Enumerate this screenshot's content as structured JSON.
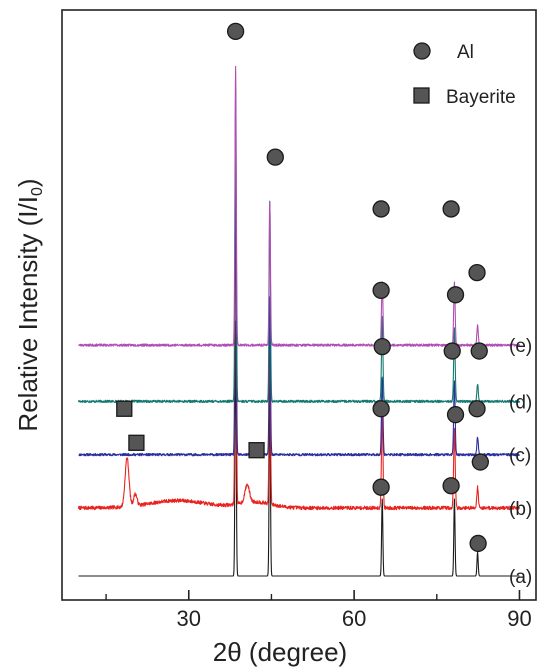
{
  "chart_data": {
    "type": "line",
    "xlabel": "2θ (degree)",
    "ylabel": "Relative Intensity (I/I",
    "ylabel_subscript": "0",
    "ylabel_suffix": ")",
    "xlim": [
      7,
      93
    ],
    "xticks": [
      30,
      60,
      90
    ],
    "xtick_labels": [
      "30",
      "60",
      "90"
    ],
    "x_minor_ticks": [
      15,
      45,
      75
    ],
    "legend": [
      {
        "label": "Al",
        "marker": "circle"
      },
      {
        "label": "Bayerite",
        "marker": "square"
      }
    ],
    "series": [
      {
        "name": "(a)",
        "color": "#1a1a1a",
        "baseline": 0.0,
        "noise": 0.0,
        "noise_seed": 3,
        "humps": [],
        "peaks": [
          {
            "x": 38.5,
            "h": 1.72,
            "w": 0.11
          },
          {
            "x": 44.7,
            "h": 1.33,
            "w": 0.11
          },
          {
            "x": 65.1,
            "h": 0.52,
            "w": 0.11
          },
          {
            "x": 78.2,
            "h": 0.52,
            "w": 0.11
          },
          {
            "x": 82.4,
            "h": 0.16,
            "w": 0.11
          }
        ]
      },
      {
        "name": "(b)",
        "color": "#e8231e",
        "baseline": 0.46,
        "noise": 0.012,
        "noise_seed": 7,
        "humps": [
          {
            "x": 28,
            "h": 0.05,
            "w": 5
          },
          {
            "x": 42,
            "h": 0.04,
            "w": 3
          }
        ],
        "peaks": [
          {
            "x": 18.8,
            "h": 0.33,
            "w": 0.35
          },
          {
            "x": 20.3,
            "h": 0.08,
            "w": 0.3
          },
          {
            "x": 40.6,
            "h": 0.12,
            "w": 0.4
          },
          {
            "x": 38.5,
            "h": 2.12,
            "w": 0.12
          },
          {
            "x": 44.7,
            "h": 1.18,
            "w": 0.12
          },
          {
            "x": 65.1,
            "h": 0.62,
            "w": 0.14
          },
          {
            "x": 78.2,
            "h": 0.53,
            "w": 0.14
          },
          {
            "x": 82.4,
            "h": 0.14,
            "w": 0.14
          }
        ]
      },
      {
        "name": "(c)",
        "color": "#2b2f9e",
        "baseline": 0.82,
        "noise": 0.008,
        "noise_seed": 11,
        "humps": [],
        "peaks": [
          {
            "x": 38.5,
            "h": 2.0,
            "w": 0.12
          },
          {
            "x": 44.7,
            "h": 1.06,
            "w": 0.12
          },
          {
            "x": 65.1,
            "h": 0.53,
            "w": 0.13
          },
          {
            "x": 78.2,
            "h": 0.5,
            "w": 0.13
          },
          {
            "x": 82.4,
            "h": 0.12,
            "w": 0.13
          }
        ]
      },
      {
        "name": "(d)",
        "color": "#137a70",
        "baseline": 1.18,
        "noise": 0.008,
        "noise_seed": 17,
        "humps": [],
        "peaks": [
          {
            "x": 38.5,
            "h": 2.1,
            "w": 0.12
          },
          {
            "x": 44.7,
            "h": 1.36,
            "w": 0.12
          },
          {
            "x": 65.1,
            "h": 0.57,
            "w": 0.13
          },
          {
            "x": 78.2,
            "h": 0.5,
            "w": 0.13
          },
          {
            "x": 82.4,
            "h": 0.12,
            "w": 0.13
          }
        ]
      },
      {
        "name": "(e)",
        "color": "#b04fb3",
        "baseline": 1.56,
        "noise": 0.008,
        "noise_seed": 23,
        "humps": [],
        "peaks": [
          {
            "x": 38.5,
            "h": 1.88,
            "w": 0.12
          },
          {
            "x": 44.7,
            "h": 0.97,
            "w": 0.12
          },
          {
            "x": 65.1,
            "h": 0.43,
            "w": 0.13
          },
          {
            "x": 78.2,
            "h": 0.43,
            "w": 0.13
          },
          {
            "x": 82.4,
            "h": 0.13,
            "w": 0.13
          }
        ]
      }
    ],
    "markers": [
      {
        "type": "circle",
        "x": 38.5,
        "y": 3.68
      },
      {
        "type": "circle",
        "x": 45.7,
        "y": 2.83
      },
      {
        "type": "circle",
        "x": 64.9,
        "y": 2.48
      },
      {
        "type": "circle",
        "x": 77.6,
        "y": 2.48
      },
      {
        "type": "circle",
        "x": 82.3,
        "y": 2.05
      },
      {
        "type": "circle",
        "x": 64.9,
        "y": 1.93
      },
      {
        "type": "circle",
        "x": 78.4,
        "y": 1.9
      },
      {
        "type": "circle",
        "x": 82.7,
        "y": 1.52
      },
      {
        "type": "circle",
        "x": 65.1,
        "y": 1.55
      },
      {
        "type": "circle",
        "x": 77.8,
        "y": 1.52
      },
      {
        "type": "circle",
        "x": 82.3,
        "y": 1.13
      },
      {
        "type": "circle",
        "x": 64.9,
        "y": 1.13
      },
      {
        "type": "circle",
        "x": 78.4,
        "y": 1.09
      },
      {
        "type": "circle",
        "x": 82.9,
        "y": 0.77
      },
      {
        "type": "circle",
        "x": 64.9,
        "y": 0.6
      },
      {
        "type": "circle",
        "x": 77.6,
        "y": 0.61
      },
      {
        "type": "circle",
        "x": 82.5,
        "y": 0.22
      },
      {
        "type": "square",
        "x": 18.3,
        "y": 1.13
      },
      {
        "type": "square",
        "x": 20.5,
        "y": 0.9
      },
      {
        "type": "square",
        "x": 42.3,
        "y": 0.85
      }
    ]
  }
}
